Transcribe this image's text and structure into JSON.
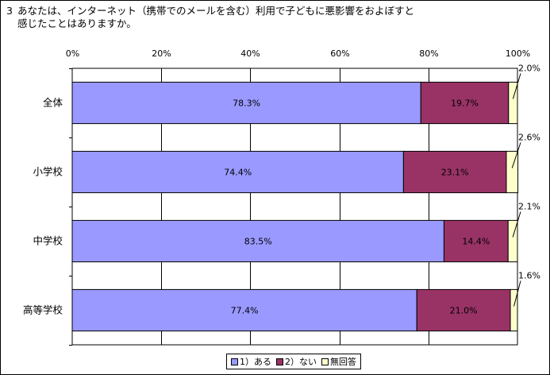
{
  "question": {
    "number": "3",
    "line1": "あなたは、インターネット（携帯でのメールを含む）利用で子どもに悪影響をおよぼすと",
    "line2": "感じたことはありますか。"
  },
  "colors": {
    "series": [
      "#9999ff",
      "#993366",
      "#ffffcc"
    ],
    "grid": "#000000",
    "leader": "#000000"
  },
  "chart_data": {
    "type": "bar",
    "orientation": "horizontal",
    "stacked": "percent",
    "categories": [
      "全体",
      "小学校",
      "中学校",
      "高等学校"
    ],
    "series": [
      {
        "name": "1）ある",
        "values": [
          78.3,
          74.4,
          83.5,
          77.4
        ],
        "labels": [
          "78.3%",
          "74.4%",
          "83.5%",
          "77.4%"
        ]
      },
      {
        "name": "2）ない",
        "values": [
          19.7,
          23.1,
          14.4,
          21.0
        ],
        "labels": [
          "19.7%",
          "23.1%",
          "14.4%",
          "21.0%"
        ]
      },
      {
        "name": "無回答",
        "values": [
          2.0,
          2.6,
          2.1,
          1.6
        ],
        "labels": [
          "2.0%",
          "2.6%",
          "2.1%",
          "1.6%"
        ]
      }
    ],
    "xlim": [
      0,
      100
    ],
    "xticks": [
      "0%",
      "20%",
      "40%",
      "60%",
      "80%",
      "100%"
    ],
    "grid": true,
    "legend_position": "bottom"
  }
}
